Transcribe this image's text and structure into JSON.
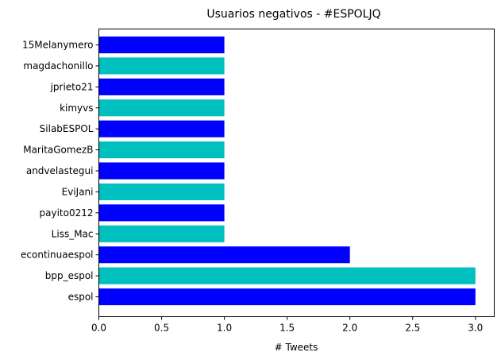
{
  "chart_data": {
    "type": "bar",
    "orientation": "horizontal",
    "title": "Usuarios negativos - #ESPOLJQ",
    "xlabel": "# Tweets",
    "ylabel": "",
    "xlim": [
      0,
      3.15
    ],
    "xticks": [
      "0.0",
      "0.5",
      "1.0",
      "1.5",
      "2.0",
      "2.5",
      "3.0"
    ],
    "xtick_values": [
      0,
      0.5,
      1.0,
      1.5,
      2.0,
      2.5,
      3.0
    ],
    "grid": false,
    "categories": [
      "espol",
      "bpp_espol",
      "econtinuaespol",
      "Liss_Mac",
      "payito0212",
      "EviJani",
      "andvelastegui",
      "MaritaGomezB",
      "SilabESPOL",
      "kimyvs",
      "jprieto21",
      "magdachonillo",
      "15Melanymero"
    ],
    "values": [
      3,
      3,
      2,
      1,
      1,
      1,
      1,
      1,
      1,
      1,
      1,
      1,
      1
    ],
    "colors": [
      "#0000ff",
      "#00bfbf"
    ]
  }
}
